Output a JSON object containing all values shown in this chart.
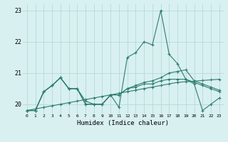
{
  "xlabel": "Humidex (Indice chaleur)",
  "background_color": "#d8f0f0",
  "grid_color": "#b8d8d8",
  "line_color": "#2e7d6e",
  "xlim": [
    -0.5,
    23.5
  ],
  "ylim": [
    19.7,
    23.2
  ],
  "yticks": [
    20,
    21,
    22,
    23
  ],
  "xticks": [
    0,
    1,
    2,
    3,
    4,
    5,
    6,
    7,
    8,
    9,
    10,
    11,
    12,
    13,
    14,
    15,
    16,
    17,
    18,
    19,
    20,
    21,
    22,
    23
  ],
  "series": [
    [
      19.8,
      19.8,
      20.4,
      20.6,
      20.85,
      20.5,
      20.5,
      20.0,
      20.0,
      20.0,
      20.3,
      19.9,
      21.5,
      21.65,
      22.0,
      21.9,
      23.0,
      21.6,
      21.3,
      20.8,
      20.65,
      19.8,
      20.0,
      20.2
    ],
    [
      19.8,
      19.8,
      20.4,
      20.6,
      20.85,
      20.5,
      20.5,
      20.1,
      20.0,
      20.0,
      20.3,
      20.3,
      20.5,
      20.6,
      20.7,
      20.75,
      20.85,
      21.0,
      21.05,
      21.1,
      20.75,
      20.65,
      20.55,
      20.45
    ],
    [
      19.8,
      19.8,
      20.4,
      20.6,
      20.85,
      20.5,
      20.5,
      20.0,
      20.0,
      20.0,
      20.3,
      20.3,
      20.5,
      20.55,
      20.65,
      20.65,
      20.75,
      20.8,
      20.8,
      20.8,
      20.7,
      20.6,
      20.5,
      20.4
    ],
    [
      19.8,
      19.85,
      19.9,
      19.95,
      20.0,
      20.05,
      20.1,
      20.15,
      20.2,
      20.25,
      20.3,
      20.35,
      20.4,
      20.45,
      20.5,
      20.55,
      20.6,
      20.65,
      20.7,
      20.72,
      20.74,
      20.76,
      20.78,
      20.8
    ]
  ]
}
